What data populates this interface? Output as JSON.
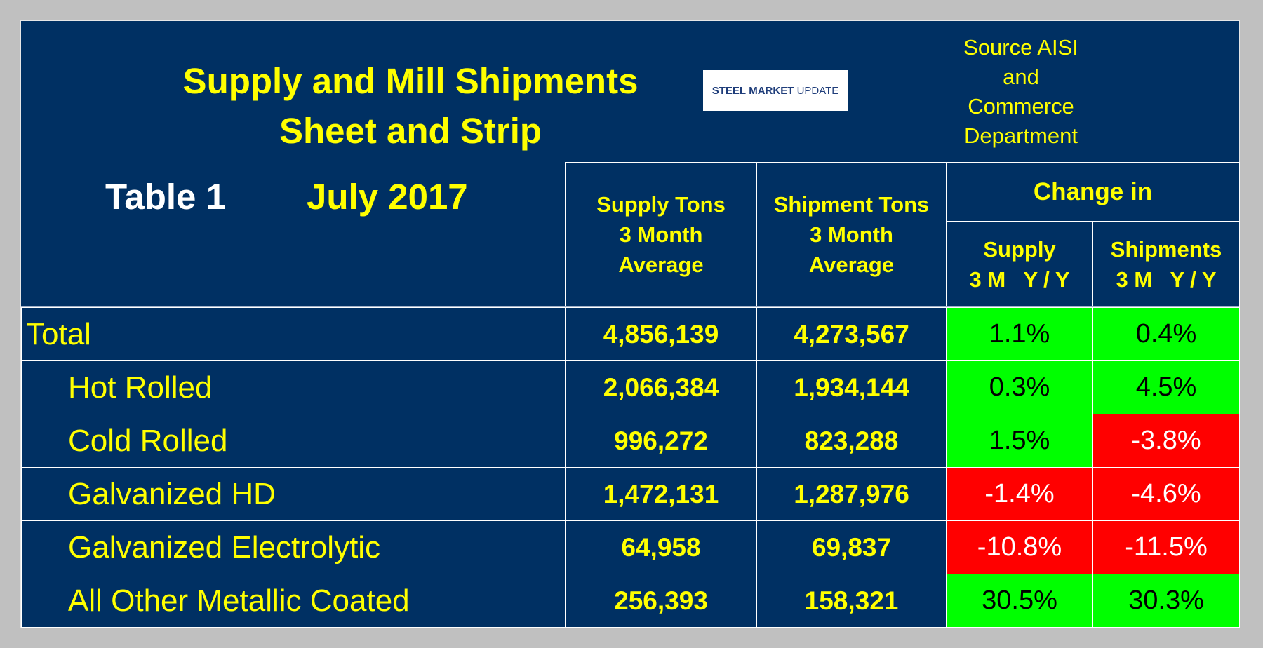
{
  "header": {
    "title": [
      "Supply and Mill Shipments",
      "Sheet and Strip"
    ],
    "table_label": "Table 1",
    "date": "July 2017",
    "logo": [
      "STEEL",
      "MARKET",
      "UPDATE"
    ],
    "source": [
      "Source AISI",
      "and",
      "Commerce",
      "Department"
    ]
  },
  "table": {
    "columns": [
      [
        "Supply Tons",
        "3 Month",
        "Average"
      ],
      [
        "Shipment Tons",
        "3 Month",
        "Average"
      ]
    ],
    "change_in": "Change in",
    "change_columns": [
      [
        "Supply",
        "3 M   Y / Y"
      ],
      [
        "Shipments",
        "3 M   Y / Y"
      ]
    ],
    "rows": [
      [
        "Total",
        "4,856,139",
        "4,273,567",
        "1.1%",
        "0.4%"
      ],
      [
        "Hot Rolled",
        "2,066,384",
        "1,934,144",
        "0.3%",
        "4.5%"
      ],
      [
        "Cold Rolled",
        "996,272",
        "823,288",
        "1.5%",
        "-3.8%"
      ],
      [
        "Galvanized HD",
        "1,472,131",
        "1,287,976",
        "-1.4%",
        "-4.6%"
      ],
      [
        "Galvanized Electrolytic",
        "64,958",
        "69,837",
        "-10.8%",
        "-11.5%"
      ],
      [
        "All Other Metallic Coated",
        "256,393",
        "158,321",
        "30.5%",
        "30.3%"
      ]
    ]
  }
}
